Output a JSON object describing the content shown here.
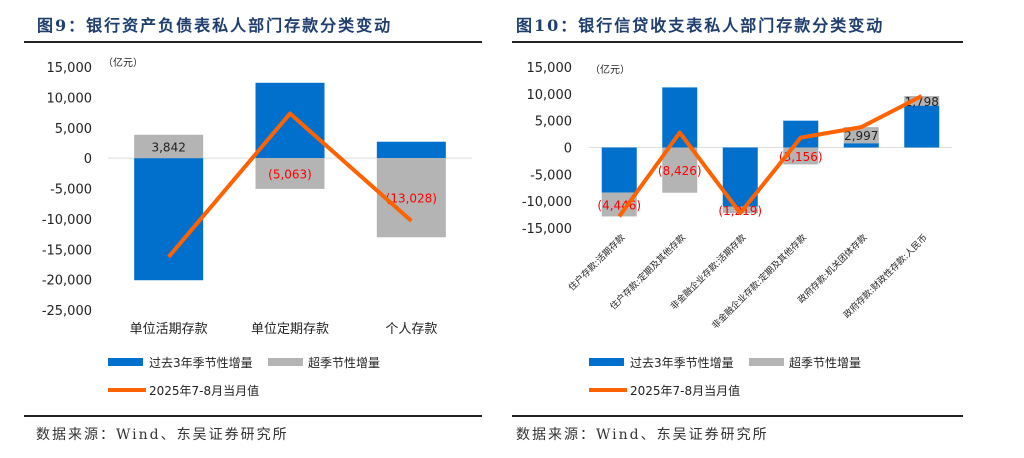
{
  "colors": {
    "seasonal": "#0070cc",
    "excess": "#b4b4b4",
    "line": "#ff6200",
    "neg_label": "#ff0000",
    "title": "#1f3e6e"
  },
  "chart_data": [
    {
      "type": "bar",
      "title": "图9：银行资产负债表私人部门存款分类变动",
      "unit": "（亿元）",
      "ylim": [
        -25000,
        15000
      ],
      "yticks": [
        15000,
        10000,
        5000,
        0,
        -5000,
        -10000,
        -15000,
        -20000,
        -25000
      ],
      "ytick_labels": [
        "15,000",
        "10,000",
        "5,000",
        "0",
        "-5,000",
        "-10,000",
        "-15,000",
        "-20,000",
        "-25,000"
      ],
      "categories": [
        "单位活期存款",
        "单位定期存款",
        "个人存款"
      ],
      "series": [
        {
          "name": "过去3年季节性增量",
          "type": "bar",
          "values": [
            -20100,
            12400,
            2700
          ]
        },
        {
          "name": "超季节性增量",
          "type": "bar",
          "values": [
            3842,
            -5063,
            -13028
          ],
          "labels": [
            "3,842",
            "(5,063)",
            "(13,028)"
          ]
        },
        {
          "name": "2025年7-8月当月值",
          "type": "line",
          "values": [
            -16258,
            7337,
            -10328
          ]
        }
      ],
      "legend": "bottom",
      "source": "数据来源：Wind、东吴证券研究所"
    },
    {
      "type": "bar",
      "title": "图10：银行信贷收支表私人部门存款分类变动",
      "unit": "（亿元）",
      "ylim": [
        -15000,
        15000
      ],
      "yticks": [
        15000,
        10000,
        5000,
        0,
        -5000,
        -10000,
        -15000
      ],
      "ytick_labels": [
        "15,000",
        "10,000",
        "5,000",
        "0",
        "-5,000",
        "-10,000",
        "-15,000"
      ],
      "categories": [
        "住户存款:活期存款",
        "住户存款:定期及其他存款",
        "非金融企业存款:活期存款",
        "非金融企业存款:定期及其他存款",
        "政府存款:机关团体存款",
        "政府存款:财政性存款:人民币"
      ],
      "series": [
        {
          "name": "过去3年季节性增量",
          "type": "bar",
          "values": [
            -8400,
            11200,
            -11000,
            5000,
            800,
            7800
          ]
        },
        {
          "name": "超季节性增量",
          "type": "bar",
          "values": [
            -4446,
            -8426,
            -1219,
            -3156,
            2997,
            1798
          ],
          "labels": [
            "(4,446)",
            "(8,426)",
            "(1,219)",
            "(3,156)",
            "2,997",
            "1,798"
          ]
        },
        {
          "name": "2025年7-8月当月值",
          "type": "line",
          "values": [
            -12846,
            2774,
            -12219,
            1844,
            3797,
            9598
          ]
        }
      ],
      "legend": "bottom",
      "source": "数据来源：Wind、东吴证券研究所"
    }
  ]
}
